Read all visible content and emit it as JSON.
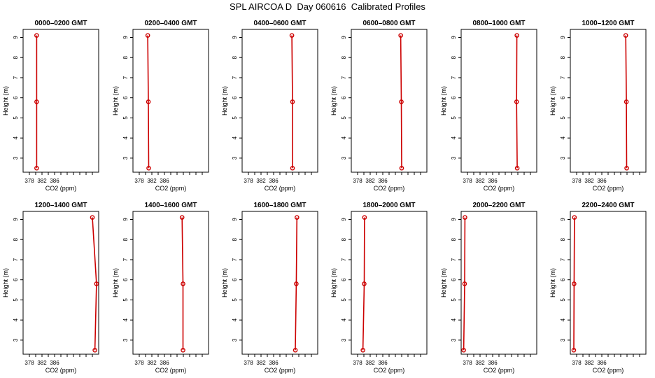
{
  "figure": {
    "title": "SPL AIRCOA D  Day 060616  Calibrated Profiles"
  },
  "style": {
    "line_color": "#cc0000",
    "marker_color": "#cc0000",
    "axis_color": "#000000"
  },
  "chart_data": [
    {
      "type": "line",
      "title": "0000–0200 GMT",
      "xlabel": "CO2 (ppm)",
      "ylabel": "Height (m)",
      "xlim": [
        376,
        400
      ],
      "ylim": [
        2.3,
        9.4
      ],
      "xticks": [
        378,
        382,
        386
      ],
      "yticks": [
        3,
        4,
        5,
        6,
        7,
        8,
        9
      ],
      "series": [
        {
          "x": [
            380.3,
            380.3,
            380.3
          ],
          "y": [
            2.5,
            5.8,
            9.1
          ]
        }
      ]
    },
    {
      "type": "line",
      "title": "0200–0400 GMT",
      "xlabel": "CO2 (ppm)",
      "ylabel": "Height (m)",
      "xlim": [
        376,
        400
      ],
      "ylim": [
        2.3,
        9.4
      ],
      "xticks": [
        378,
        382,
        386
      ],
      "yticks": [
        3,
        4,
        5,
        6,
        7,
        8,
        9
      ],
      "series": [
        {
          "x": [
            381.0,
            380.9,
            380.7
          ],
          "y": [
            2.5,
            5.8,
            9.1
          ]
        }
      ]
    },
    {
      "type": "line",
      "title": "0400–0600 GMT",
      "xlabel": "CO2 (ppm)",
      "ylabel": "Height (m)",
      "xlim": [
        376,
        400
      ],
      "ylim": [
        2.3,
        9.4
      ],
      "xticks": [
        378,
        382,
        386
      ],
      "yticks": [
        3,
        4,
        5,
        6,
        7,
        8,
        9
      ],
      "series": [
        {
          "x": [
            392.0,
            392.0,
            391.8
          ],
          "y": [
            2.5,
            5.8,
            9.1
          ]
        }
      ]
    },
    {
      "type": "line",
      "title": "0600–0800 GMT",
      "xlabel": "CO2 (ppm)",
      "ylabel": "Height (m)",
      "xlim": [
        376,
        400
      ],
      "ylim": [
        2.3,
        9.4
      ],
      "xticks": [
        378,
        382,
        386
      ],
      "yticks": [
        3,
        4,
        5,
        6,
        7,
        8,
        9
      ],
      "series": [
        {
          "x": [
            392.0,
            391.9,
            391.7
          ],
          "y": [
            2.5,
            5.8,
            9.1
          ]
        }
      ]
    },
    {
      "type": "line",
      "title": "0800–1000 GMT",
      "xlabel": "CO2 (ppm)",
      "ylabel": "Height (m)",
      "xlim": [
        376,
        400
      ],
      "ylim": [
        2.3,
        9.4
      ],
      "xticks": [
        378,
        382,
        386
      ],
      "yticks": [
        3,
        4,
        5,
        6,
        7,
        8,
        9
      ],
      "series": [
        {
          "x": [
            393.8,
            393.6,
            393.7
          ],
          "y": [
            2.5,
            5.8,
            9.1
          ]
        }
      ]
    },
    {
      "type": "line",
      "title": "1000–1200 GMT",
      "xlabel": "CO2 (ppm)",
      "ylabel": "Height (m)",
      "xlim": [
        376,
        400
      ],
      "ylim": [
        2.3,
        9.4
      ],
      "xticks": [
        378,
        382,
        386
      ],
      "yticks": [
        3,
        4,
        5,
        6,
        7,
        8,
        9
      ],
      "series": [
        {
          "x": [
            393.9,
            393.8,
            393.6
          ],
          "y": [
            2.5,
            5.8,
            9.1
          ]
        }
      ]
    },
    {
      "type": "line",
      "title": "1200–1400 GMT",
      "xlabel": "CO2 (ppm)",
      "ylabel": "Height (m)",
      "xlim": [
        376,
        400
      ],
      "ylim": [
        2.3,
        9.4
      ],
      "xticks": [
        378,
        382,
        386
      ],
      "yticks": [
        3,
        4,
        5,
        6,
        7,
        8,
        9
      ],
      "series": [
        {
          "x": [
            398.8,
            399.3,
            398.0
          ],
          "y": [
            2.5,
            5.8,
            9.1
          ]
        }
      ]
    },
    {
      "type": "line",
      "title": "1400–1600 GMT",
      "xlabel": "CO2 (ppm)",
      "ylabel": "Height (m)",
      "xlim": [
        376,
        400
      ],
      "ylim": [
        2.3,
        9.4
      ],
      "xticks": [
        378,
        382,
        386
      ],
      "yticks": [
        3,
        4,
        5,
        6,
        7,
        8,
        9
      ],
      "series": [
        {
          "x": [
            391.9,
            391.9,
            391.6
          ],
          "y": [
            2.5,
            5.8,
            9.1
          ]
        }
      ]
    },
    {
      "type": "line",
      "title": "1600–1800 GMT",
      "xlabel": "CO2 (ppm)",
      "ylabel": "Height (m)",
      "xlim": [
        376,
        400
      ],
      "ylim": [
        2.3,
        9.4
      ],
      "xticks": [
        378,
        382,
        386
      ],
      "yticks": [
        3,
        4,
        5,
        6,
        7,
        8,
        9
      ],
      "series": [
        {
          "x": [
            392.9,
            393.2,
            393.4
          ],
          "y": [
            2.5,
            5.8,
            9.1
          ]
        }
      ]
    },
    {
      "type": "line",
      "title": "1800–2000 GMT",
      "xlabel": "CO2 (ppm)",
      "ylabel": "Height (m)",
      "xlim": [
        376,
        400
      ],
      "ylim": [
        2.3,
        9.4
      ],
      "xticks": [
        378,
        382,
        386
      ],
      "yticks": [
        3,
        4,
        5,
        6,
        7,
        8,
        9
      ],
      "series": [
        {
          "x": [
            379.7,
            380.1,
            380.2
          ],
          "y": [
            2.5,
            5.8,
            9.1
          ]
        }
      ]
    },
    {
      "type": "line",
      "title": "2000–2200 GMT",
      "xlabel": "CO2 (ppm)",
      "ylabel": "Height (m)",
      "xlim": [
        376,
        400
      ],
      "ylim": [
        2.3,
        9.4
      ],
      "xticks": [
        378,
        382,
        386
      ],
      "yticks": [
        3,
        4,
        5,
        6,
        7,
        8,
        9
      ],
      "series": [
        {
          "x": [
            376.8,
            377.1,
            377.2
          ],
          "y": [
            2.5,
            5.8,
            9.1
          ]
        }
      ]
    },
    {
      "type": "line",
      "title": "2200–2400 GMT",
      "xlabel": "CO2 (ppm)",
      "ylabel": "Height (m)",
      "xlim": [
        376,
        400
      ],
      "ylim": [
        2.3,
        9.4
      ],
      "xticks": [
        378,
        382,
        386
      ],
      "yticks": [
        3,
        4,
        5,
        6,
        7,
        8,
        9
      ],
      "series": [
        {
          "x": [
            377.1,
            377.2,
            377.3
          ],
          "y": [
            2.5,
            5.8,
            9.1
          ]
        }
      ]
    }
  ]
}
